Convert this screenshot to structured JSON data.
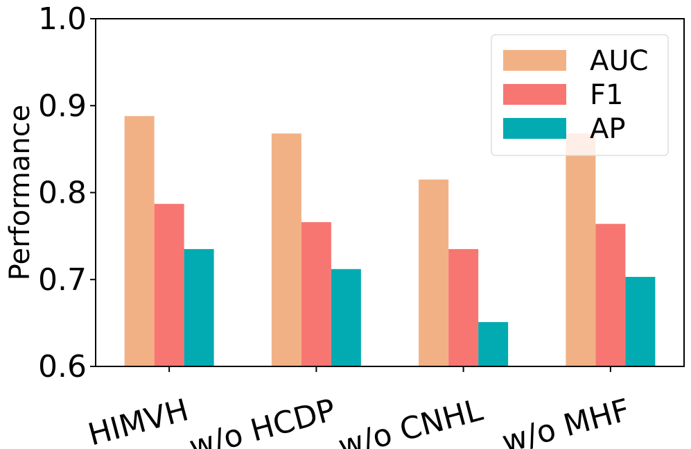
{
  "chart_data": {
    "type": "bar",
    "categories": [
      "HIMVH",
      "w/o HCDP",
      "w/o CNHL",
      "w/o MHF"
    ],
    "series": [
      {
        "name": "AUC",
        "color": "#F2B185",
        "values": [
          0.888,
          0.868,
          0.815,
          0.868
        ]
      },
      {
        "name": "F1",
        "color": "#F77672",
        "values": [
          0.787,
          0.766,
          0.735,
          0.764
        ]
      },
      {
        "name": "AP",
        "color": "#02ABB2",
        "values": [
          0.735,
          0.712,
          0.651,
          0.703
        ]
      }
    ],
    "title": "",
    "xlabel": "",
    "ylabel": "Performance",
    "ylim": [
      0.6,
      1.0
    ],
    "yticks": [
      "0.6",
      "0.7",
      "0.8",
      "0.9",
      "1.0"
    ],
    "ytick_values": [
      0.6,
      0.7,
      0.8,
      0.9,
      1.0
    ],
    "grid": false,
    "legend": {
      "position": "top-right",
      "overlaps_bars": true
    }
  }
}
